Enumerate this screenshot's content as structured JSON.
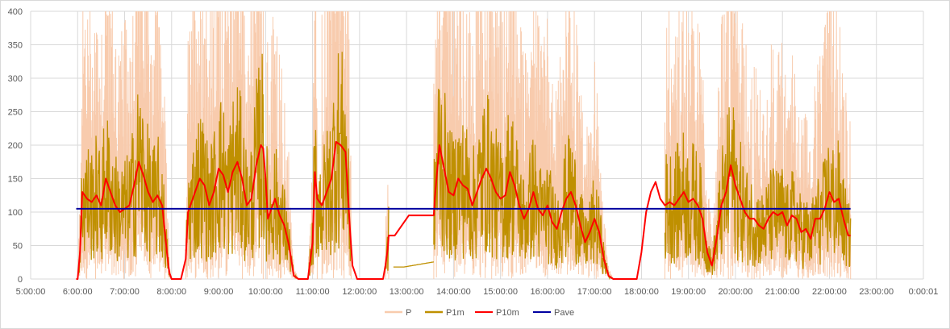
{
  "chart_data": {
    "type": "line",
    "title": "",
    "xlabel": "",
    "ylabel": "",
    "ylim": [
      0,
      400
    ],
    "yticks": [
      0,
      50,
      100,
      150,
      200,
      250,
      300,
      350,
      400
    ],
    "xlim_hours": [
      5,
      24.0001157
    ],
    "xticks": [
      "5:00:00",
      "6:00:00",
      "7:00:00",
      "8:00:00",
      "9:00:00",
      "10:00:00",
      "11:00:00",
      "12:00:00",
      "13:00:00",
      "14:00:00",
      "15:00:00",
      "16:00:00",
      "17:00:00",
      "18:00:00",
      "19:00:00",
      "20:00:00",
      "21:00:00",
      "22:00:00",
      "23:00:00",
      "0:00:01"
    ],
    "grid": true,
    "legend_position": "bottom",
    "colors": {
      "P": "#f8cbad",
      "P1m": "#bf9000",
      "P10m": "#ff0000",
      "Pave": "#0000a0"
    },
    "series": [
      {
        "name": "P",
        "segments_hours": [
          [
            6.0,
            7.97
          ],
          [
            8.3,
            9.95
          ],
          [
            10.03,
            11.1
          ],
          [
            11.2,
            11.82
          ],
          [
            12.55,
            12.62
          ],
          [
            13.58,
            17.8
          ],
          [
            17.52,
            17.72
          ],
          [
            18.5,
            19.85
          ],
          [
            19.9,
            20.35
          ],
          [
            20.4,
            22.45
          ]
        ],
        "approx_range": [
          0,
          400
        ]
      },
      {
        "name": "P1m",
        "segments_hours": [
          [
            6.0,
            7.97
          ],
          [
            8.3,
            11.82
          ],
          [
            12.55,
            12.62
          ],
          [
            12.72,
            13.58
          ],
          [
            13.58,
            17.8
          ],
          [
            18.5,
            22.45
          ]
        ],
        "approx_range": [
          0,
          280
        ]
      },
      {
        "name": "P10m",
        "x_hours": [
          5.97,
          6.0,
          6.05,
          6.1,
          6.2,
          6.3,
          6.4,
          6.5,
          6.6,
          6.7,
          6.8,
          6.9,
          7.0,
          7.1,
          7.2,
          7.3,
          7.4,
          7.5,
          7.6,
          7.7,
          7.8,
          7.9,
          7.95,
          8.0,
          8.1,
          8.2,
          8.3,
          8.35,
          8.4,
          8.5,
          8.6,
          8.7,
          8.8,
          8.9,
          9.0,
          9.1,
          9.2,
          9.3,
          9.4,
          9.5,
          9.6,
          9.7,
          9.8,
          9.9,
          9.95,
          10.0,
          10.05,
          10.1,
          10.2,
          10.3,
          10.4,
          10.5,
          10.6,
          10.7,
          10.8,
          10.9,
          11.0,
          11.05,
          11.1,
          11.2,
          11.3,
          11.4,
          11.5,
          11.6,
          11.7,
          11.75,
          11.8,
          11.85,
          11.95,
          12.0,
          12.3,
          12.5,
          12.55,
          12.6,
          12.62,
          12.75,
          13.05,
          13.58,
          13.6,
          13.7,
          13.8,
          13.9,
          14.0,
          14.1,
          14.2,
          14.3,
          14.4,
          14.5,
          14.6,
          14.7,
          14.8,
          14.9,
          15.0,
          15.1,
          15.2,
          15.3,
          15.4,
          15.5,
          15.6,
          15.7,
          15.8,
          15.9,
          16.0,
          16.1,
          16.2,
          16.3,
          16.4,
          16.5,
          16.6,
          16.7,
          16.8,
          16.9,
          17.0,
          17.1,
          17.2,
          17.3,
          17.4,
          17.5,
          17.6,
          17.7,
          17.8,
          17.9,
          18.0,
          18.1,
          18.2,
          18.3,
          18.4,
          18.5,
          18.6,
          18.7,
          18.8,
          18.9,
          19.0,
          19.1,
          19.2,
          19.3,
          19.4,
          19.5,
          19.6,
          19.7,
          19.8,
          19.9,
          20.0,
          20.1,
          20.2,
          20.3,
          20.4,
          20.5,
          20.6,
          20.7,
          20.8,
          20.9,
          21.0,
          21.1,
          21.2,
          21.3,
          21.4,
          21.5,
          21.6,
          21.7,
          21.8,
          21.9,
          22.0,
          22.1,
          22.2,
          22.3,
          22.4,
          22.45
        ],
        "values": [
          0,
          0,
          40,
          130,
          120,
          115,
          125,
          110,
          150,
          130,
          110,
          100,
          105,
          110,
          140,
          175,
          155,
          130,
          115,
          125,
          110,
          40,
          10,
          0,
          0,
          0,
          30,
          100,
          110,
          130,
          150,
          140,
          110,
          130,
          165,
          155,
          130,
          160,
          175,
          150,
          110,
          120,
          170,
          200,
          195,
          150,
          90,
          100,
          120,
          95,
          80,
          50,
          5,
          0,
          0,
          0,
          55,
          160,
          120,
          110,
          130,
          150,
          205,
          200,
          190,
          130,
          70,
          20,
          0,
          0,
          0,
          0,
          20,
          45,
          65,
          65,
          95,
          95,
          120,
          200,
          165,
          130,
          125,
          150,
          140,
          135,
          110,
          130,
          150,
          165,
          150,
          130,
          120,
          125,
          160,
          140,
          110,
          90,
          105,
          130,
          105,
          95,
          110,
          85,
          75,
          100,
          120,
          130,
          110,
          80,
          55,
          70,
          90,
          70,
          30,
          5,
          0,
          0,
          0,
          0,
          0,
          0,
          40,
          100,
          130,
          145,
          120,
          110,
          115,
          110,
          120,
          130,
          115,
          120,
          110,
          90,
          40,
          20,
          60,
          110,
          130,
          170,
          140,
          120,
          100,
          90,
          90,
          80,
          75,
          90,
          100,
          95,
          100,
          80,
          95,
          90,
          70,
          75,
          60,
          90,
          90,
          105,
          130,
          115,
          120,
          90,
          65,
          65
        ]
      },
      {
        "name": "Pave",
        "x_hours": [
          5.97,
          22.45
        ],
        "values": [
          105,
          105
        ]
      }
    ]
  }
}
